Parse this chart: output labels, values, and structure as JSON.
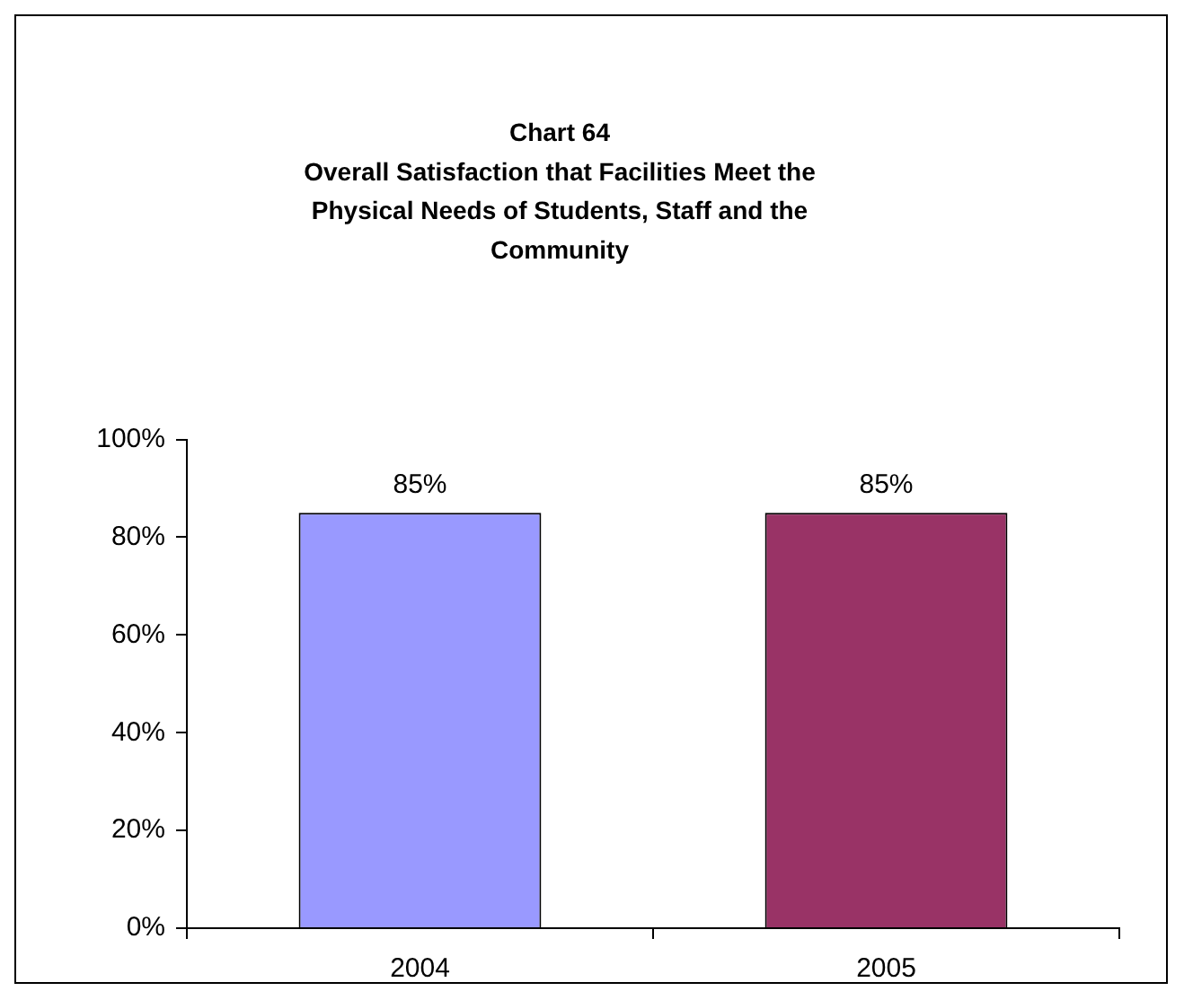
{
  "chart_data": {
    "type": "bar",
    "title": "Chart 64\nOverall Satisfaction that Facilities Meet the\nPhysical Needs of Students, Staff and the\nCommunity",
    "categories": [
      "2004",
      "2005"
    ],
    "values": [
      85,
      85
    ],
    "colors": [
      "#9999ff",
      "#993366"
    ],
    "value_labels": [
      "85%",
      "85%"
    ],
    "ylim": [
      0,
      100
    ],
    "yticks": [
      {
        "value": 0,
        "label": "0%"
      },
      {
        "value": 20,
        "label": "20%"
      },
      {
        "value": 40,
        "label": "40%"
      },
      {
        "value": 60,
        "label": "60%"
      },
      {
        "value": 80,
        "label": "80%"
      },
      {
        "value": 100,
        "label": "100%"
      }
    ],
    "grid": false,
    "legend": false
  }
}
